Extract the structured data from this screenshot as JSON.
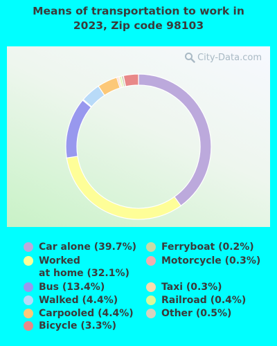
{
  "title_line1": "Means of transportation to work in",
  "title_line2": "2023, Zip code 98103",
  "watermark": "City-Data.com",
  "chart_data": {
    "type": "pie",
    "style": "donut",
    "slices": [
      {
        "label": "Car alone",
        "value": 39.7,
        "color": "#bca9dc"
      },
      {
        "label": "Worked\nat home",
        "value": 32.1,
        "color": "#fefe98"
      },
      {
        "label": "Bus",
        "value": 13.4,
        "color": "#9898ee"
      },
      {
        "label": "Ferryboat",
        "value": 0.2,
        "color": "#c8dba6"
      },
      {
        "label": "Walked",
        "value": 4.4,
        "color": "#b8daf8"
      },
      {
        "label": "Carpooled",
        "value": 4.4,
        "color": "#fcc878"
      },
      {
        "label": "Motorcycle",
        "value": 0.3,
        "color": "#f1aeae"
      },
      {
        "label": "Taxi",
        "value": 0.3,
        "color": "#fcdcae"
      },
      {
        "label": "Railroad",
        "value": 0.4,
        "color": "#d8f89a"
      },
      {
        "label": "Other",
        "value": 0.5,
        "color": "#d8d2be"
      },
      {
        "label": "Bicycle",
        "value": 3.3,
        "color": "#e88888"
      }
    ],
    "legend_columns": [
      [
        "Car alone",
        "Worked\nat home",
        "Bus",
        "Walked",
        "Carpooled",
        "Bicycle"
      ],
      [
        "Ferryboat",
        "Motorcycle",
        "Taxi",
        "Railroad",
        "Other"
      ]
    ]
  }
}
